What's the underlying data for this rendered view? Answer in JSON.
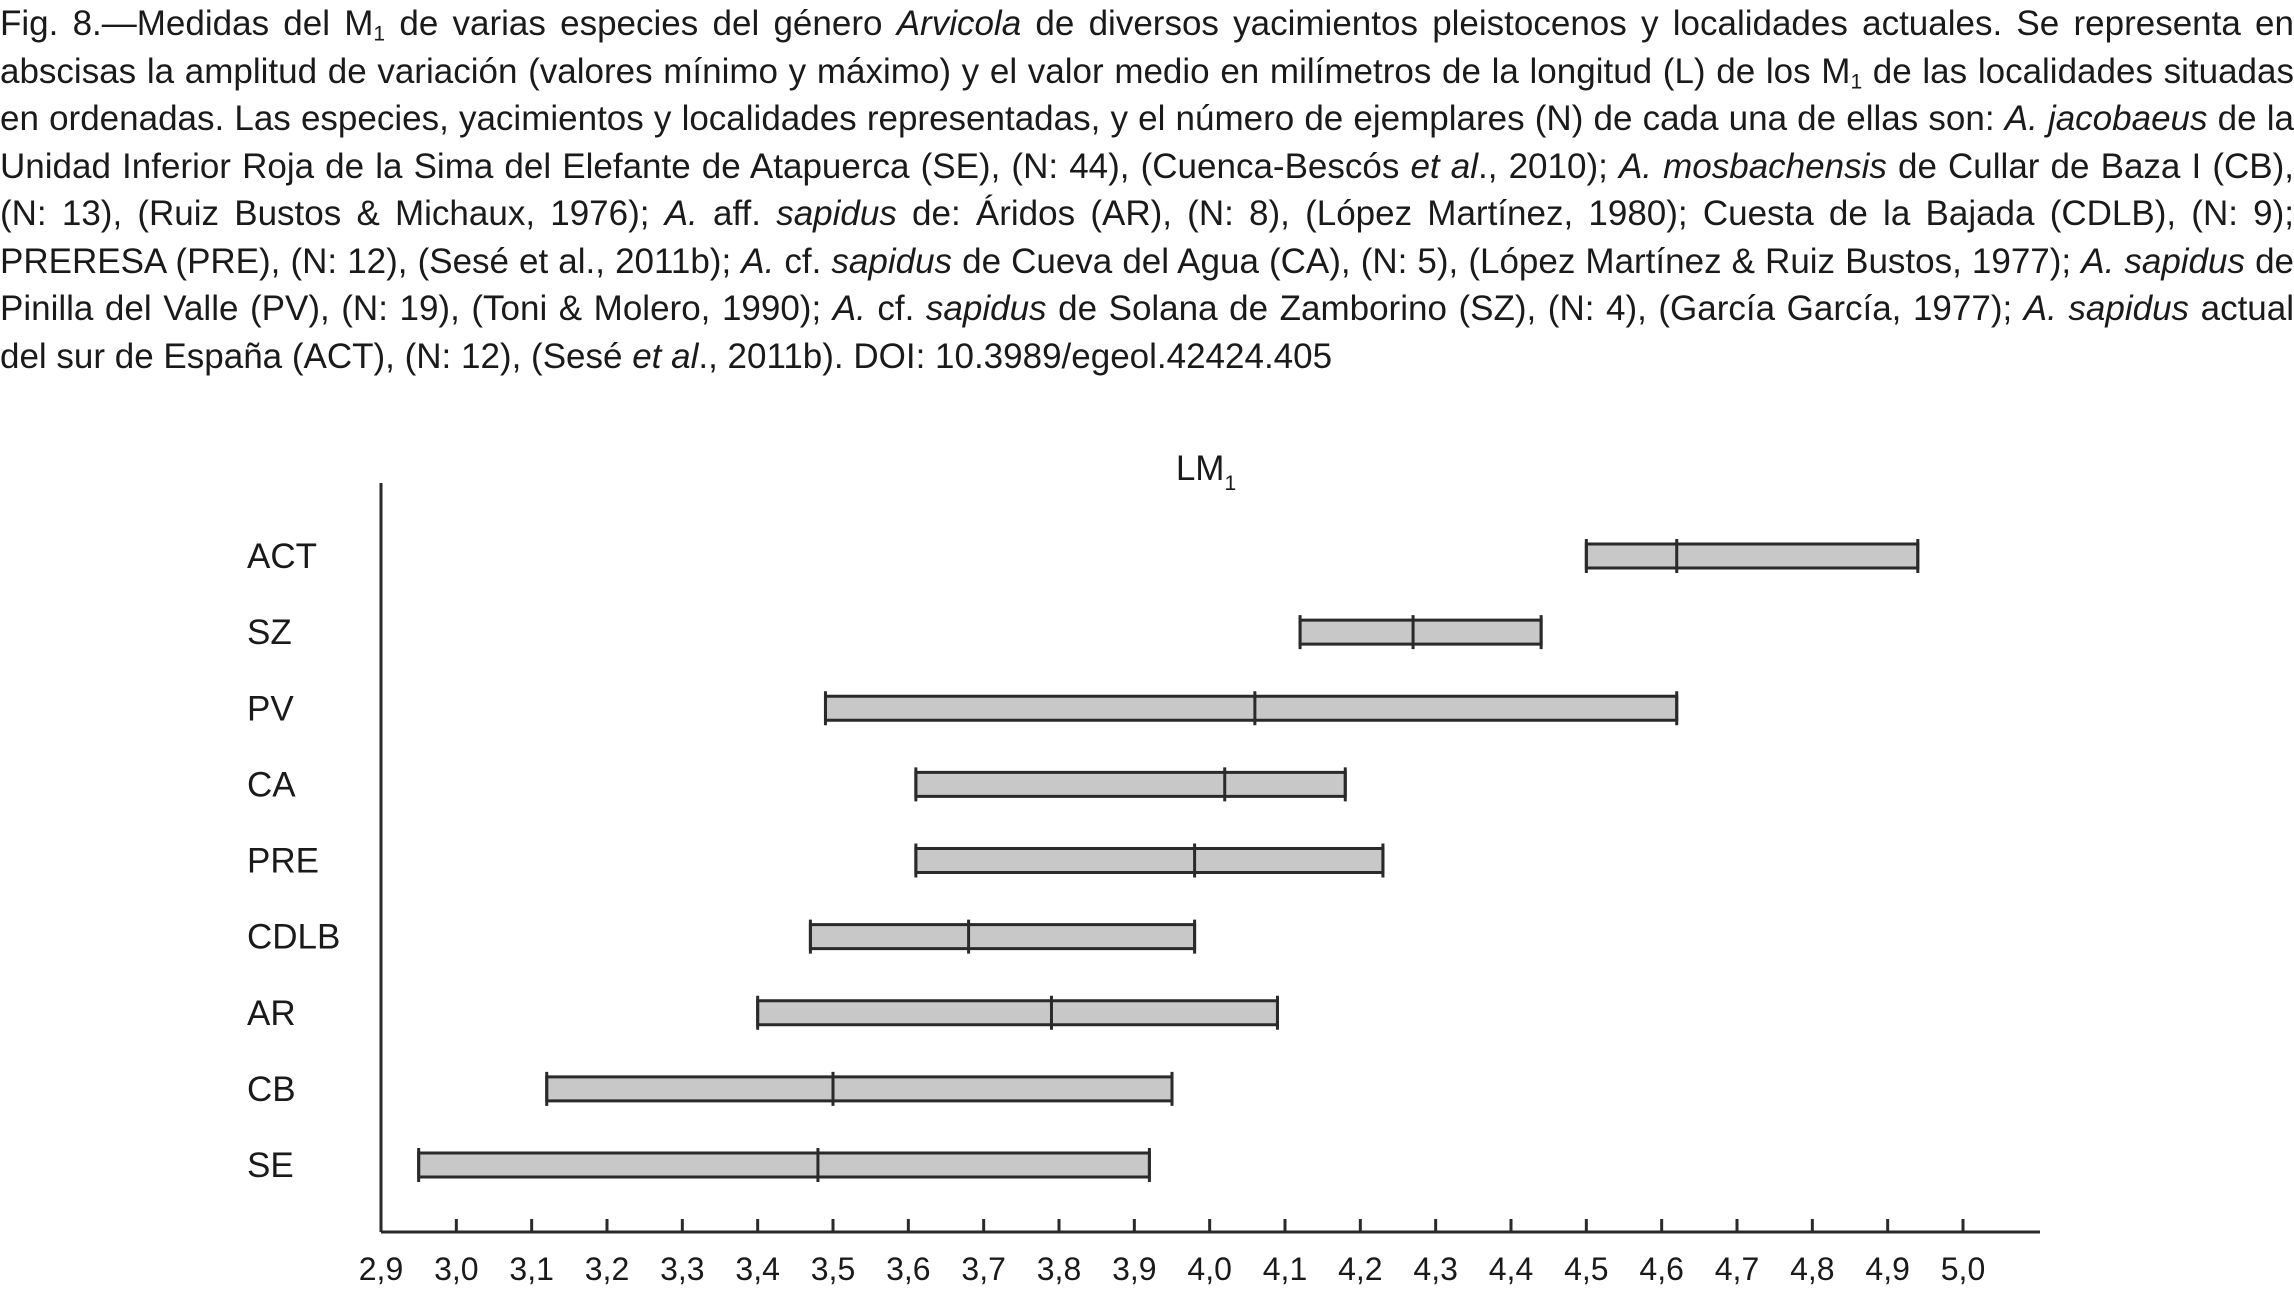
{
  "caption": {
    "parts": [
      {
        "t": "Fig. 8.—Medidas del M"
      },
      {
        "t": "1",
        "sub": true
      },
      {
        "t": " de varias especies del género "
      },
      {
        "t": "Arvicola",
        "i": true
      },
      {
        "t": " de diversos yacimientos pleistocenos y localidades actuales. Se representa en abscisas la amplitud de variación (valores mínimo y máximo) y el valor medio en milímetros de la longitud (L) de los M"
      },
      {
        "t": "1",
        "sub": true
      },
      {
        "t": " de las localidades situadas en ordenadas. Las especies, yacimientos y localidades representadas, y el número de ejemplares (N) de cada una de ellas son: "
      },
      {
        "t": "A. jacobaeus",
        "i": true
      },
      {
        "t": " de la Unidad Inferior Roja de la Sima del Elefante de Atapuerca (SE), (N: 44), (Cuenca-Bescós "
      },
      {
        "t": "et al",
        "i": true
      },
      {
        "t": "., 2010); "
      },
      {
        "t": "A. mosbachensis",
        "i": true
      },
      {
        "t": " de Cullar de Baza I (CB), (N: 13), (Ruiz Bustos & Michaux, 1976); "
      },
      {
        "t": "A.",
        "i": true
      },
      {
        "t": " aff. "
      },
      {
        "t": "sapidus",
        "i": true
      },
      {
        "t": " de: Áridos (AR), (N: 8), (López Martínez, 1980); Cuesta de la Bajada (CDLB), (N: 9); PRERESA (PRE), (N: 12), (Sesé et al., 2011b); "
      },
      {
        "t": "A.",
        "i": true
      },
      {
        "t": " cf. "
      },
      {
        "t": "sapidus",
        "i": true
      },
      {
        "t": " de Cueva del Agua (CA), (N: 5), (López Martínez & Ruiz Bustos, 1977); "
      },
      {
        "t": "A. sapidus",
        "i": true
      },
      {
        "t": " de Pinilla del Valle (PV), (N: 19), (Toni & Molero, 1990); "
      },
      {
        "t": "A.",
        "i": true
      },
      {
        "t": " cf. "
      },
      {
        "t": "sapidus",
        "i": true
      },
      {
        "t": " de Solana de Zamborino (SZ), (N: 4), (García García, 1977); "
      },
      {
        "t": "A. sapidus",
        "i": true
      },
      {
        "t": " actual del sur de España (ACT), (N: 12), (Sesé "
      },
      {
        "t": "et al",
        "i": true
      },
      {
        "t": "., 2011b). DOI: 10.3989/egeol.42424.405"
      }
    ]
  },
  "chart_data": {
    "type": "range",
    "title": "LM",
    "title_subscript": "1",
    "categories": [
      "ACT",
      "SZ",
      "PV",
      "CA",
      "PRE",
      "CDLB",
      "AR",
      "CB",
      "SE"
    ],
    "series": [
      {
        "min": 4.5,
        "mean": 4.62,
        "max": 4.94
      },
      {
        "min": 4.12,
        "mean": 4.27,
        "max": 4.44
      },
      {
        "min": 3.49,
        "mean": 4.06,
        "max": 4.62
      },
      {
        "min": 3.61,
        "mean": 4.02,
        "max": 4.18
      },
      {
        "min": 3.61,
        "mean": 3.98,
        "max": 4.23
      },
      {
        "min": 3.47,
        "mean": 3.68,
        "max": 3.98
      },
      {
        "min": 3.4,
        "mean": 3.79,
        "max": 4.09
      },
      {
        "min": 3.12,
        "mean": 3.5,
        "max": 3.95
      },
      {
        "min": 2.95,
        "mean": 3.48,
        "max": 3.92
      }
    ],
    "x_ticks": [
      "2,9",
      "3,0",
      "3,1",
      "3,2",
      "3,3",
      "3,4",
      "3,5",
      "3,6",
      "3,7",
      "3,8",
      "3,9",
      "4,0",
      "4,1",
      "4,2",
      "4,3",
      "4,4",
      "4,5",
      "4,6",
      "4,7",
      "4,8",
      "4,9",
      "5,0"
    ],
    "xlim": [
      2.9,
      5.0
    ],
    "xlabel": "",
    "ylabel": "",
    "grid": false,
    "bar_color": "#c8c8c8",
    "line_color": "#2a2a2a"
  }
}
